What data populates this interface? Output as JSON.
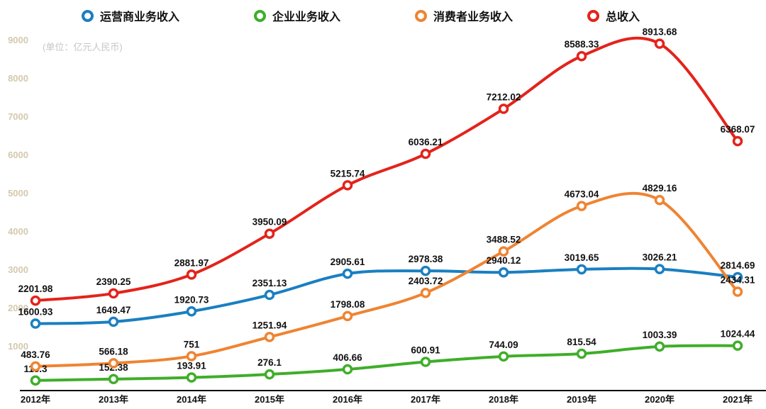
{
  "unit_note": "(单位：亿元人民币)",
  "colors": {
    "axis_tick": "#d4c9ad",
    "x_tick": "#111111",
    "value_label": "#111111",
    "unit_note": "#c6c6c6",
    "background": "#ffffff",
    "axis_line": "#000000"
  },
  "chart_data": {
    "type": "line",
    "title": "",
    "xlabel": "",
    "ylabel": "",
    "grid": false,
    "legend_position": "top",
    "marker": "open-circle",
    "categories": [
      "2012年",
      "2013年",
      "2014年",
      "2015年",
      "2016年",
      "2017年",
      "2018年",
      "2019年",
      "2020年",
      "2021年"
    ],
    "y_ticks": [
      1000,
      2000,
      3000,
      4000,
      5000,
      6000,
      7000,
      8000,
      9000
    ],
    "ylim": [
      0,
      9300
    ],
    "series": [
      {
        "id": "operator",
        "name": "运营商业务收入",
        "color": "#1a7fc1",
        "values": [
          1600.93,
          1649.47,
          1920.73,
          2351.13,
          2905.61,
          2978.38,
          2940.12,
          3019.65,
          3026.21,
          2814.69
        ]
      },
      {
        "id": "enterprise",
        "name": "企业业务收入",
        "color": "#3fae29",
        "values": [
          115.3,
          152.38,
          193.91,
          276.1,
          406.66,
          600.91,
          744.09,
          815.54,
          1003.39,
          1024.44
        ]
      },
      {
        "id": "consumer",
        "name": "消费者业务收入",
        "color": "#ef8432",
        "values": [
          483.76,
          566.18,
          751,
          1251.94,
          1798.08,
          2403.72,
          3488.52,
          4673.04,
          4829.16,
          2434.31
        ]
      },
      {
        "id": "total",
        "name": "总收入",
        "color": "#e3231b",
        "values": [
          2201.98,
          2390.25,
          2881.97,
          3950.09,
          5215.74,
          6036.21,
          7212.02,
          8588.33,
          8913.68,
          6368.07
        ]
      }
    ]
  }
}
